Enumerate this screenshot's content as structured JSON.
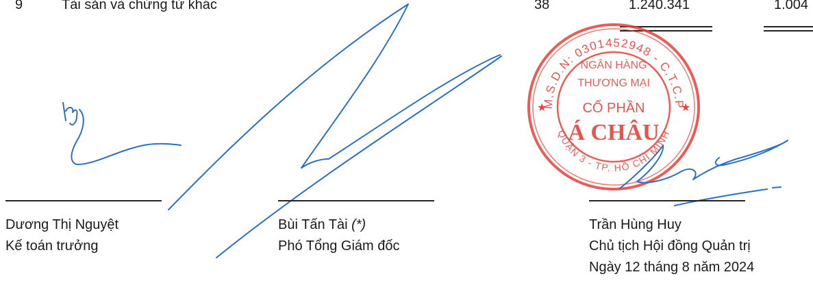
{
  "table_row": {
    "index": "9",
    "label": "Tài sản và chứng từ khác",
    "note": "38",
    "value_current": "1.240.341",
    "value_prior": "1.004"
  },
  "signatories": [
    {
      "name": "Dương Thị Nguyệt",
      "title": "Kế toán trưởng"
    },
    {
      "name": "Bùi Tấn Tài",
      "name_mark": "(*)",
      "title": "Phó Tổng Giám đốc"
    },
    {
      "name": "Trần Hùng Huy",
      "title": "Chủ tịch Hội đồng Quản trị",
      "date": "Ngày 12 tháng 8 năm 2024"
    }
  ],
  "stamp": {
    "outer_text": "M.S.D.N: 0301452948 - C.T.C.P",
    "bottom_text": "QUẬN 3 - TP. HỒ CHÍ MINH",
    "inner_line1": "NGÂN HÀNG",
    "inner_line2": "THƯƠNG MẠI",
    "inner_line3": "CỔ PHẦN",
    "inner_line4": "Á CHÂU",
    "color": "#e8403a"
  },
  "ink_color": "#2a6fc2"
}
